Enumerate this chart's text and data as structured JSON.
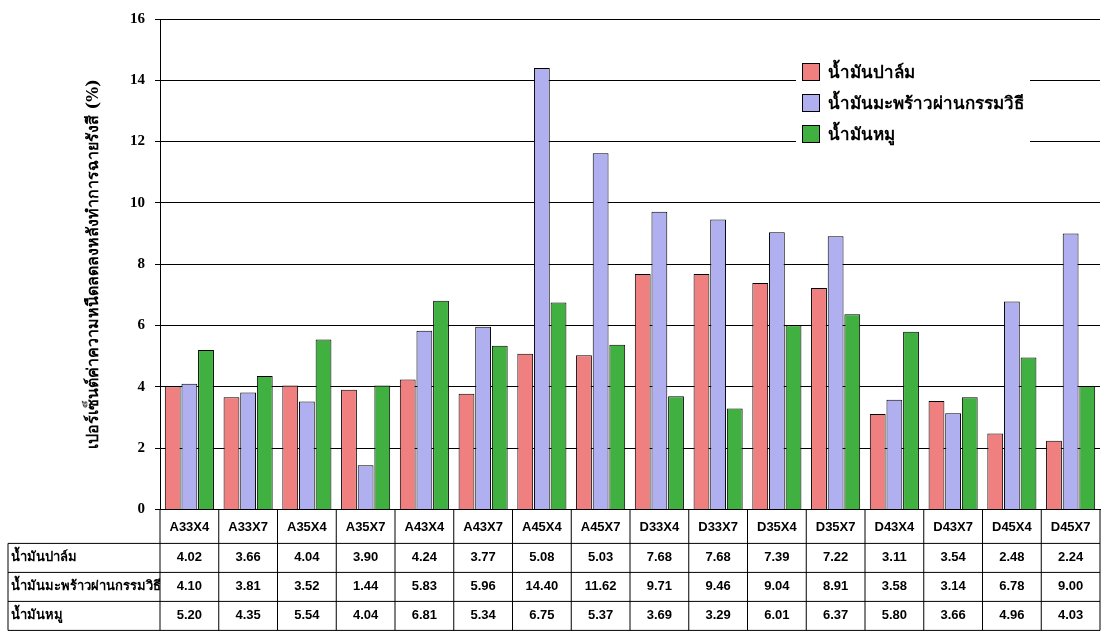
{
  "chart_data": {
    "type": "bar",
    "ylabel": "เปอร์เซ็นต์ค่าความหนืดลดลงหลังทำการฉายรังสี (%)",
    "categories": [
      "A33X4",
      "A33X7",
      "A35X4",
      "A35X7",
      "A43X4",
      "A43X7",
      "A45X4",
      "A45X7",
      "D33X4",
      "D33X7",
      "D35X4",
      "D35X7",
      "D43X4",
      "D43X7",
      "D45X4",
      "D45X7"
    ],
    "series": [
      {
        "name": "น้ำมันปาล์ม",
        "color": "#f08080",
        "values": [
          4.02,
          3.66,
          4.04,
          3.9,
          4.24,
          3.77,
          5.08,
          5.03,
          7.68,
          7.68,
          7.39,
          7.22,
          3.11,
          3.54,
          2.48,
          2.24
        ],
        "value_labels": [
          "4.02",
          "3.66",
          "4.04",
          "3.90",
          "4.24",
          "3.77",
          "5.08",
          "5.03",
          "7.68",
          "7.68",
          "7.39",
          "7.22",
          "3.11",
          "3.54",
          "2.48",
          "2.24"
        ]
      },
      {
        "name": "น้ำมันมะพร้าวผ่านกรรมวิธี",
        "color": "#b0b0f0",
        "values": [
          4.1,
          3.81,
          3.52,
          1.44,
          5.83,
          5.96,
          14.4,
          11.62,
          9.71,
          9.46,
          9.04,
          8.91,
          3.58,
          3.14,
          6.78,
          9.0
        ],
        "value_labels": [
          "4.10",
          "3.81",
          "3.52",
          "1.44",
          "5.83",
          "5.96",
          "14.40",
          "11.62",
          "9.71",
          "9.46",
          "9.04",
          "8.91",
          "3.58",
          "3.14",
          "6.78",
          "9.00"
        ]
      },
      {
        "name": "น้ำมันหมู",
        "color": "#40b040",
        "values": [
          5.2,
          4.35,
          5.54,
          4.04,
          6.81,
          5.34,
          6.75,
          5.37,
          3.69,
          3.29,
          6.01,
          6.37,
          5.8,
          3.66,
          4.96,
          4.03
        ],
        "value_labels": [
          "5.20",
          "4.35",
          "5.54",
          "4.04",
          "6.81",
          "5.34",
          "6.75",
          "5.37",
          "3.69",
          "3.29",
          "6.01",
          "6.37",
          "5.80",
          "3.66",
          "4.96",
          "4.03"
        ]
      }
    ],
    "ylim": [
      0,
      16
    ],
    "yticks": [
      0,
      2,
      4,
      6,
      8,
      10,
      12,
      14,
      16
    ],
    "grid": "y",
    "legend": "top right"
  }
}
